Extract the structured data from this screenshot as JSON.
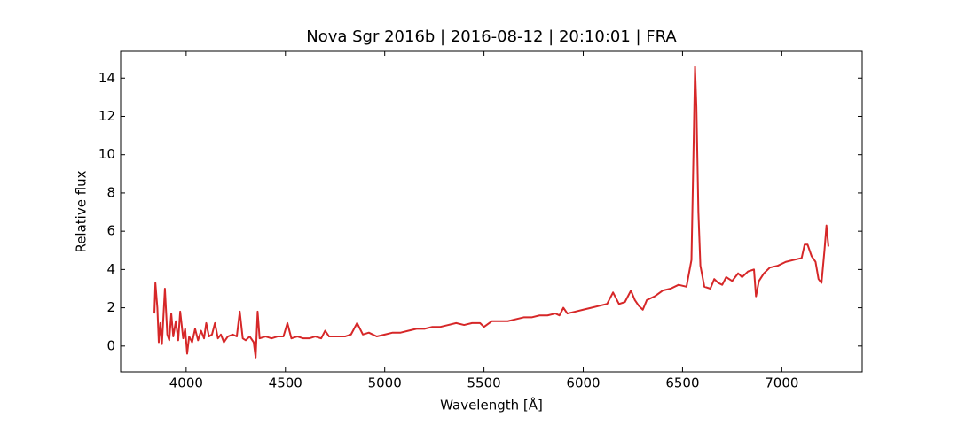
{
  "chart_data": {
    "type": "line",
    "title": "Nova Sgr 2016b | 2016-08-12 | 20:10:01 | FRA",
    "xlabel": "Wavelength [Å]",
    "ylabel": "Relative flux",
    "xlim": [
      3670,
      7405
    ],
    "ylim": [
      -1.35,
      15.4
    ],
    "xticks": [
      4000,
      4500,
      5000,
      5500,
      6000,
      6500,
      7000
    ],
    "yticks": [
      0,
      2,
      4,
      6,
      8,
      10,
      12,
      14
    ],
    "grid": false,
    "x": [
      3840,
      3845,
      3855,
      3862,
      3870,
      3878,
      3893,
      3905,
      3915,
      3925,
      3935,
      3948,
      3960,
      3970,
      3985,
      3995,
      4005,
      4015,
      4030,
      4045,
      4060,
      4075,
      4090,
      4101,
      4115,
      4130,
      4145,
      4160,
      4175,
      4190,
      4210,
      4235,
      4255,
      4270,
      4285,
      4300,
      4320,
      4340,
      4350,
      4360,
      4370,
      4400,
      4430,
      4460,
      4490,
      4510,
      4530,
      4560,
      4590,
      4620,
      4650,
      4680,
      4700,
      4720,
      4760,
      4800,
      4830,
      4861,
      4890,
      4920,
      4960,
      5000,
      5040,
      5080,
      5120,
      5160,
      5200,
      5240,
      5280,
      5320,
      5360,
      5400,
      5440,
      5480,
      5500,
      5540,
      5580,
      5620,
      5660,
      5700,
      5740,
      5780,
      5820,
      5860,
      5880,
      5900,
      5920,
      5960,
      6000,
      6040,
      6080,
      6120,
      6150,
      6180,
      6210,
      6240,
      6260,
      6280,
      6300,
      6320,
      6360,
      6400,
      6440,
      6480,
      6520,
      6545,
      6555,
      6563,
      6570,
      6580,
      6590,
      6610,
      6640,
      6660,
      6680,
      6700,
      6720,
      6750,
      6780,
      6800,
      6830,
      6860,
      6870,
      6885,
      6910,
      6940,
      6980,
      7020,
      7060,
      7100,
      7115,
      7130,
      7150,
      7170,
      7185,
      7200,
      7215,
      7225,
      7235
    ],
    "series": [
      {
        "color": "#d62728",
        "values": [
          1.7,
          3.3,
          2.0,
          0.2,
          1.2,
          0.1,
          3.0,
          0.6,
          0.3,
          1.7,
          0.5,
          1.3,
          0.3,
          1.8,
          0.4,
          0.9,
          -0.4,
          0.5,
          0.2,
          0.9,
          0.3,
          0.8,
          0.4,
          1.2,
          0.5,
          0.6,
          1.2,
          0.4,
          0.6,
          0.2,
          0.5,
          0.6,
          0.5,
          1.8,
          0.4,
          0.3,
          0.5,
          0.2,
          -0.6,
          1.8,
          0.4,
          0.5,
          0.4,
          0.5,
          0.5,
          1.2,
          0.4,
          0.5,
          0.4,
          0.4,
          0.5,
          0.4,
          0.8,
          0.5,
          0.5,
          0.5,
          0.6,
          1.2,
          0.6,
          0.7,
          0.5,
          0.6,
          0.7,
          0.7,
          0.8,
          0.9,
          0.9,
          1.0,
          1.0,
          1.1,
          1.2,
          1.1,
          1.2,
          1.2,
          1.0,
          1.3,
          1.3,
          1.3,
          1.4,
          1.5,
          1.5,
          1.6,
          1.6,
          1.7,
          1.6,
          2.0,
          1.7,
          1.8,
          1.9,
          2.0,
          2.1,
          2.2,
          2.8,
          2.2,
          2.3,
          2.9,
          2.4,
          2.1,
          1.9,
          2.4,
          2.6,
          2.9,
          3.0,
          3.2,
          3.1,
          4.5,
          10,
          14.6,
          12.5,
          7,
          4.2,
          3.1,
          3.0,
          3.5,
          3.3,
          3.2,
          3.6,
          3.4,
          3.8,
          3.6,
          3.9,
          4.0,
          2.6,
          3.4,
          3.8,
          4.1,
          4.2,
          4.4,
          4.5,
          4.6,
          5.3,
          5.3,
          4.7,
          4.4,
          3.5,
          3.3,
          5.0,
          6.3,
          5.2
        ]
      }
    ]
  }
}
